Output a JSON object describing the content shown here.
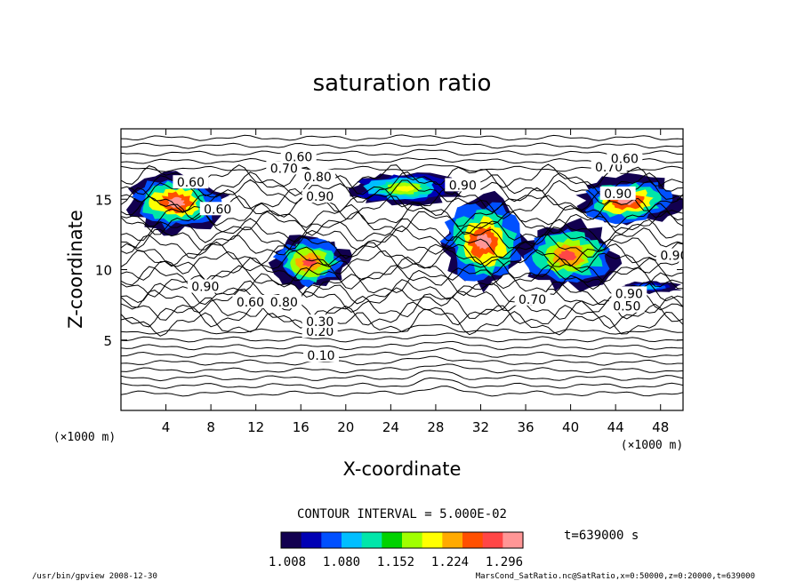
{
  "chart_data": {
    "type": "heatmap",
    "title": "saturation ratio",
    "xlabel": "X-coordinate",
    "ylabel": "Z-coordinate",
    "x_unit": "(×1000 m)",
    "y_unit": "(×1000 m)",
    "xlim": [
      0,
      50
    ],
    "ylim": [
      0,
      20
    ],
    "x_ticks": [
      4,
      8,
      12,
      16,
      20,
      24,
      28,
      32,
      36,
      40,
      44,
      48
    ],
    "y_ticks": [
      5,
      10,
      15
    ],
    "grid": false,
    "contour_interval_label": "CONTOUR INTERVAL = 5.000E-02",
    "contour_interval": 0.05,
    "contour_labels": [
      {
        "text": "0.10",
        "x": 17.8,
        "y": 3.9
      },
      {
        "text": "0.20",
        "x": 17.7,
        "y": 5.6
      },
      {
        "text": "0.30",
        "x": 17.7,
        "y": 6.3
      },
      {
        "text": "0.60",
        "x": 11.5,
        "y": 7.7
      },
      {
        "text": "0.80",
        "x": 14.5,
        "y": 7.7
      },
      {
        "text": "0.70",
        "x": 36.6,
        "y": 7.9
      },
      {
        "text": "0.50",
        "x": 45.0,
        "y": 7.4
      },
      {
        "text": "0.90",
        "x": 45.2,
        "y": 8.3
      },
      {
        "text": "0.90",
        "x": 7.5,
        "y": 8.8
      },
      {
        "text": "0.90",
        "x": 49.2,
        "y": 11.0
      },
      {
        "text": "0.60",
        "x": 8.6,
        "y": 14.3
      },
      {
        "text": "0.90",
        "x": 17.7,
        "y": 15.2
      },
      {
        "text": "0.60",
        "x": 6.2,
        "y": 16.2
      },
      {
        "text": "0.80",
        "x": 17.5,
        "y": 16.6
      },
      {
        "text": "0.70",
        "x": 14.5,
        "y": 17.2
      },
      {
        "text": "0.60",
        "x": 15.8,
        "y": 18.0
      },
      {
        "text": "0.70",
        "x": 43.4,
        "y": 17.3
      },
      {
        "text": "0.60",
        "x": 44.8,
        "y": 17.9
      },
      {
        "text": "0.90",
        "x": 44.2,
        "y": 15.4
      },
      {
        "text": "0.90",
        "x": 30.4,
        "y": 16.0
      }
    ],
    "color_scale": {
      "ticks": [
        1.008,
        1.08,
        1.152,
        1.224,
        1.296
      ],
      "tick_labels": [
        "1.008",
        "1.080",
        "1.152",
        "1.224",
        "1.296"
      ],
      "colors": [
        "#120050",
        "#0000b4",
        "#0050ff",
        "#00beff",
        "#00e6aa",
        "#00d200",
        "#a0ff00",
        "#ffff00",
        "#ffaa00",
        "#ff5000",
        "#ff4646",
        "#ff9696"
      ]
    },
    "saturated_regions": [
      {
        "x": [
          0.3,
          9.5
        ],
        "z": [
          12.5,
          17.0
        ],
        "peak": 1.29
      },
      {
        "x": [
          13.0,
          20.5
        ],
        "z": [
          8.5,
          12.5
        ],
        "peak": 1.25
      },
      {
        "x": [
          20.0,
          30.5
        ],
        "z": [
          14.5,
          17.0
        ],
        "peak": 1.2
      },
      {
        "x": [
          28.0,
          36.5
        ],
        "z": [
          8.5,
          15.5
        ],
        "peak": 1.29
      },
      {
        "x": [
          35.0,
          44.5
        ],
        "z": [
          8.5,
          13.5
        ],
        "peak": 1.26
      },
      {
        "x": [
          40.0,
          50.0
        ],
        "z": [
          13.0,
          16.8
        ],
        "peak": 1.29
      },
      {
        "x": [
          44.0,
          50.0
        ],
        "z": [
          8.3,
          9.2
        ],
        "peak": 1.1
      }
    ]
  },
  "time_label": "t=639000 s",
  "footer": {
    "left": "/usr/bin/gpview  2008-12-30",
    "right": "MarsCond_SatRatio.nc@SatRatio,x=0:50000,z=0:20000,t=639000"
  }
}
